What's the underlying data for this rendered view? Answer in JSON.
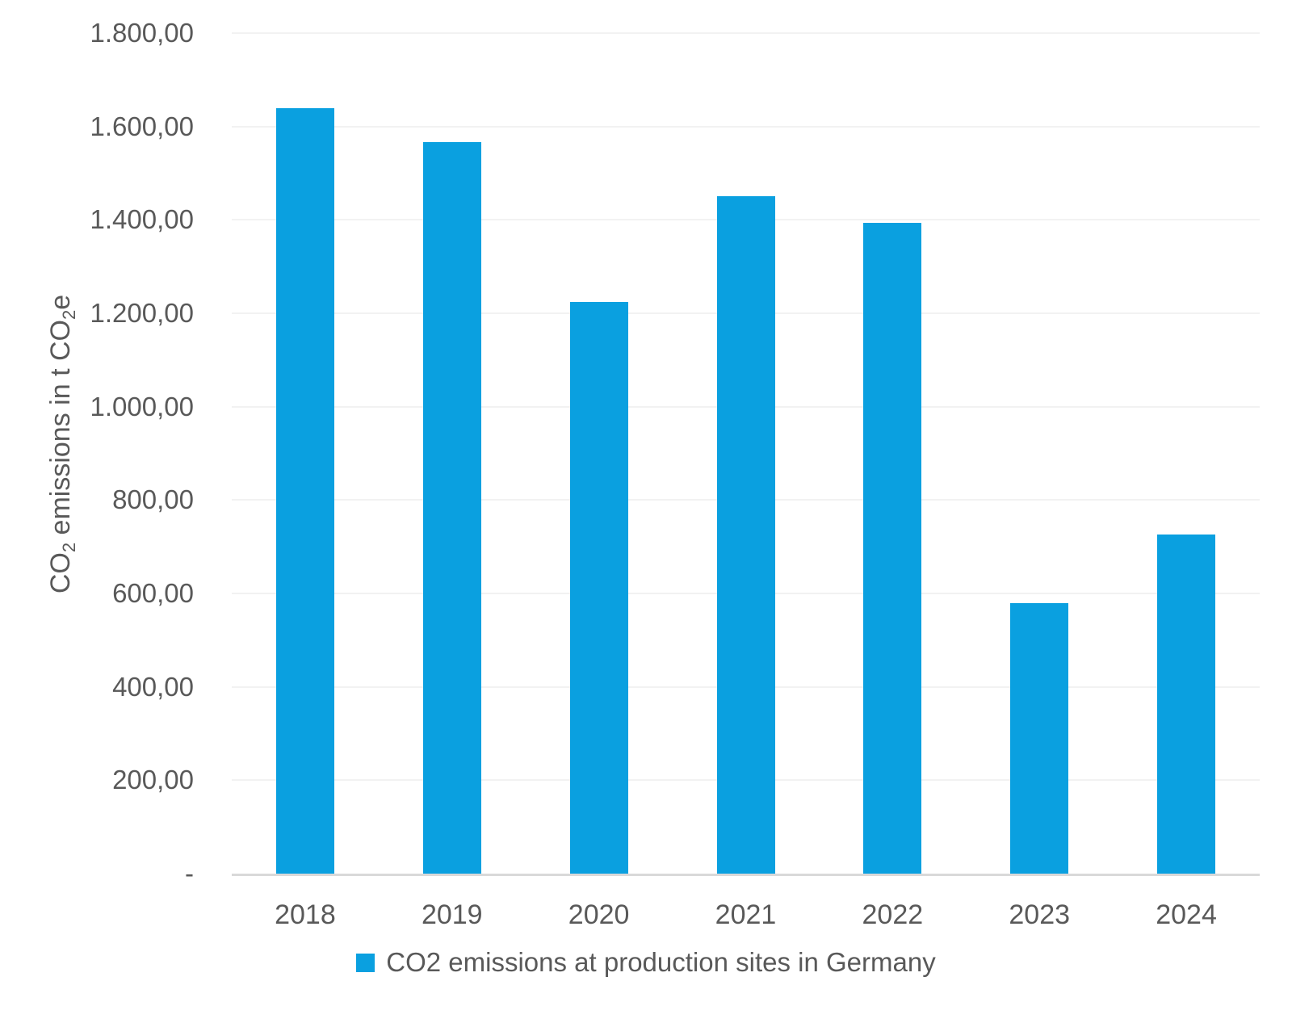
{
  "chart_data": {
    "type": "bar",
    "title": "",
    "categories": [
      "2018",
      "2019",
      "2020",
      "2021",
      "2022",
      "2023",
      "2024"
    ],
    "values": [
      1640,
      1566,
      1225,
      1450,
      1394,
      580,
      726
    ],
    "series_name": "CO2 emissions at production sites in Germany",
    "xlabel": "",
    "ylabel": "CO2 emissions in t CO2e",
    "ylabel_parts": {
      "p1": "CO",
      "s1": "2",
      "p2": " emissions in t CO",
      "s2": "2",
      "p3": "e"
    },
    "ylim": [
      0,
      1800
    ],
    "y_tick_step": 200,
    "number_format": "de-DE",
    "grid": true,
    "legend_position": "bottom",
    "y_ticks": [
      {
        "value": 1800,
        "label": "1.800,00"
      },
      {
        "value": 1600,
        "label": "1.600,00"
      },
      {
        "value": 1400,
        "label": "1.400,00"
      },
      {
        "value": 1200,
        "label": "1.200,00"
      },
      {
        "value": 1000,
        "label": "1.000,00"
      },
      {
        "value": 800,
        "label": "800,00"
      },
      {
        "value": 600,
        "label": "600,00"
      },
      {
        "value": 400,
        "label": "400,00"
      },
      {
        "value": 200,
        "label": "200,00"
      },
      {
        "value": 0,
        "label": "-"
      }
    ],
    "colors": {
      "bar": "#0AA0E0",
      "text": "#595959",
      "grid": "#F2F2F2",
      "axis": "#D9D9D9",
      "background": "#FFFFFF"
    }
  },
  "legend": {
    "label": "CO2 emissions at production sites in Germany",
    "swatch_color": "#0AA0E0"
  }
}
